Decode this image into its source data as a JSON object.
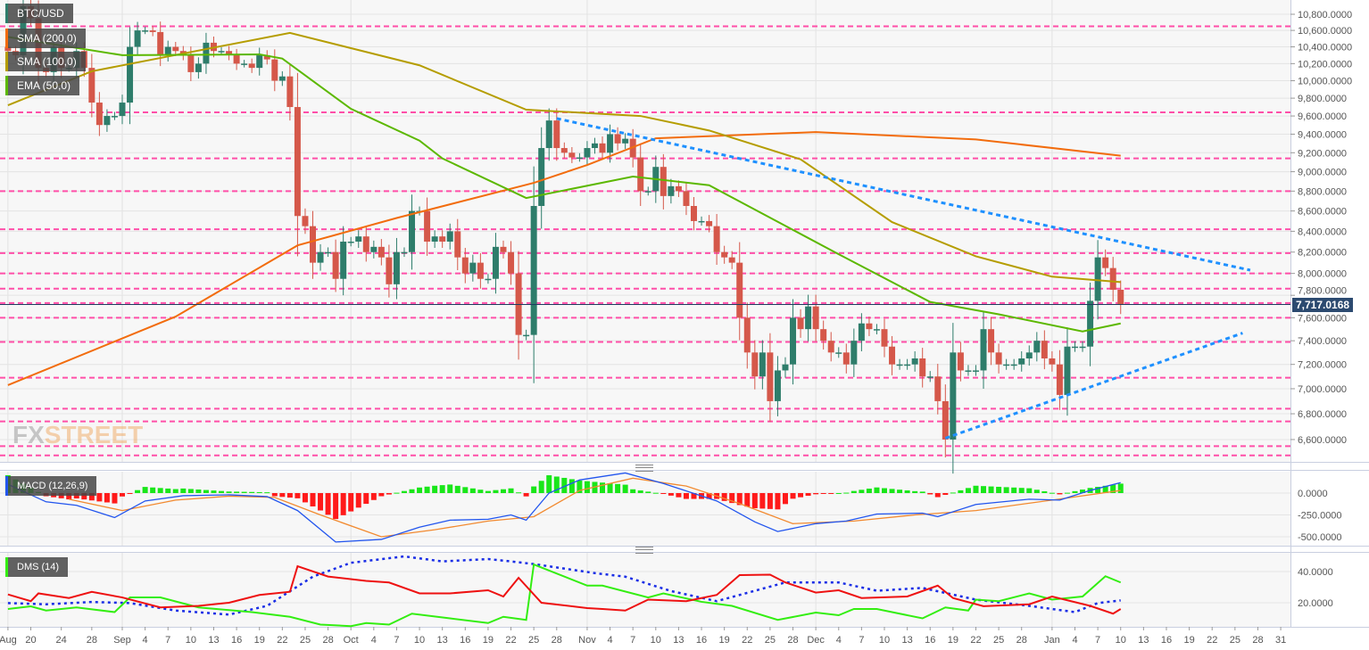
{
  "symbol": "BTC/USD",
  "indicators": [
    {
      "label": "SMA (200,0)",
      "color": "#f26c0d"
    },
    {
      "label": "SMA (100,0)",
      "color": "#b59d00"
    },
    {
      "label": "EMA (50,0)",
      "color": "#5cb800"
    }
  ],
  "symbol_color": "#2e7d6b",
  "current_price": "7,717.0168",
  "logo": {
    "part1": "FX",
    "part2": "STREET"
  },
  "colors": {
    "up": "#2e7d6b",
    "down": "#d5584a",
    "levels": "#ff4fa8",
    "trendline": "#1e90ff",
    "price_line": "#1f3a5f",
    "macd": "#2255ee",
    "signal": "#f28a30",
    "hist_up": "#19e619",
    "hist_down": "#ff1a1a",
    "di_plus": "#33ee11",
    "di_minus": "#ee1111",
    "adx": "#1a2ee6"
  },
  "chart_data": [
    {
      "type": "candlestick",
      "panel": "price",
      "scale": "log",
      "ylim": [
        6450,
        10950
      ],
      "y_ticks": [
        "10,800.0000",
        "10,600.0000",
        "10,400.0000",
        "10,200.0000",
        "10,000.0000",
        "9,800.0000",
        "9,600.0000",
        "9,400.0000",
        "9,200.0000",
        "9,000.0000",
        "8,800.0000",
        "8,600.0000",
        "8,400.0000",
        "8,200.0000",
        "8,000.0000",
        "7,800.0000",
        "7,600.0000",
        "7,400.0000",
        "7,200.0000",
        "7,000.0000",
        "6,800.0000",
        "6,600.0000"
      ],
      "candles": {
        "start": "Aug 17",
        "end": "Jan 10",
        "close": [
          10350,
          10300,
          10900,
          10750,
          10150,
          10100,
          10400,
          10150,
          10150,
          10350,
          10150,
          9750,
          9500,
          9600,
          9600,
          9750,
          10400,
          10600,
          10600,
          10580,
          10300,
          10400,
          10350,
          10300,
          10100,
          10200,
          10450,
          10350,
          10350,
          10300,
          10200,
          10200,
          10150,
          10300,
          10250,
          10000,
          10050,
          9700,
          8550,
          8450,
          8100,
          8200,
          8200,
          7950,
          8300,
          8300,
          8350,
          8200,
          8250,
          8150,
          7900,
          8200,
          8200,
          8600,
          8600,
          8300,
          8350,
          8300,
          8400,
          8150,
          8000,
          8100,
          7950,
          7950,
          8250,
          8200,
          8000,
          7450,
          7450,
          8650,
          9250,
          9550,
          9250,
          9200,
          9150,
          9150,
          9250,
          9300,
          9200,
          9400,
          9300,
          9350,
          9150,
          8800,
          8800,
          9050,
          8750,
          8850,
          8800,
          8650,
          8500,
          8500,
          8450,
          8200,
          8150,
          8100,
          7600,
          7300,
          7100,
          7300,
          6900,
          7150,
          7200,
          7600,
          7500,
          7700,
          7500,
          7400,
          7300,
          7300,
          7200,
          7400,
          7550,
          7500,
          7500,
          7350,
          7200,
          7200,
          7200,
          7250,
          7100,
          7100,
          6900,
          6600,
          7300,
          7150,
          7150,
          7150,
          7500,
          7300,
          7200,
          7200,
          7200,
          7250,
          7300,
          7400,
          7250,
          7200,
          6950,
          7350,
          7350,
          7350,
          7750,
          8150,
          8050,
          7850,
          7717
        ]
      },
      "moving_averages": [
        {
          "name": "SMA (200,0)",
          "points": [
            [
              "Aug 17",
              7029
            ],
            [
              "Sep 8",
              7610
            ],
            [
              "Sep 24",
              8264
            ],
            [
              "Oct 7",
              8530
            ],
            [
              "Oct 25",
              8885
            ],
            [
              "Nov 1",
              9070
            ],
            [
              "Nov 10",
              9355
            ],
            [
              "Dec 1",
              9423
            ],
            [
              "Dec 22",
              9343
            ],
            [
              "Jan 10",
              9168
            ]
          ]
        },
        {
          "name": "SMA (100,0)",
          "points": [
            [
              "Aug 17",
              9720
            ],
            [
              "Aug 28",
              10110
            ],
            [
              "Sep 23",
              10570
            ],
            [
              "Oct 10",
              10180
            ],
            [
              "Oct 24",
              9670
            ],
            [
              "Nov 8",
              9600
            ],
            [
              "Nov 17",
              9440
            ],
            [
              "Nov 29",
              9130
            ],
            [
              "Dec 11",
              8490
            ],
            [
              "Dec 22",
              8160
            ],
            [
              "Jan 1",
              7970
            ],
            [
              "Jan 10",
              7920
            ]
          ]
        },
        {
          "name": "EMA (50,0)",
          "points": [
            [
              "Aug 17",
              10520
            ],
            [
              "Sep 1",
              10300
            ],
            [
              "Sep 19",
              10310
            ],
            [
              "Sep 22",
              10260
            ],
            [
              "Oct 1",
              9680
            ],
            [
              "Oct 10",
              9330
            ],
            [
              "Oct 13",
              9140
            ],
            [
              "Oct 24",
              8730
            ],
            [
              "Nov 7",
              8950
            ],
            [
              "Nov 17",
              8860
            ],
            [
              "Dec 4",
              8180
            ],
            [
              "Dec 16",
              7740
            ],
            [
              "Dec 25",
              7630
            ],
            [
              "Jan 5",
              7480
            ],
            [
              "Jan 10",
              7550
            ]
          ]
        }
      ],
      "horizontal_levels": [
        10650,
        9640,
        9140,
        8800,
        8420,
        8190,
        8000,
        7860,
        7730,
        7600,
        7390,
        7090,
        6840,
        6740,
        6550,
        6480
      ],
      "trendlines": [
        {
          "from": [
            "Oct 28",
            9572
          ],
          "to": [
            "Jan 27",
            8030
          ]
        },
        {
          "from": [
            "Dec 18",
            6610
          ],
          "to": [
            "Jan 26",
            7466
          ]
        }
      ],
      "current_price": 7717.0168
    },
    {
      "type": "line",
      "panel": "macd",
      "title": "MACD (12,26,9)",
      "y_ticks": [
        "0.0000",
        "-250.0000",
        "-500.0000"
      ],
      "ylim": [
        -620,
        280
      ],
      "macd": [
        [
          "Aug 17",
          100
        ],
        [
          "Aug 22",
          -100
        ],
        [
          "Aug 26",
          -140
        ],
        [
          "Aug 31",
          -280
        ],
        [
          "Sep 4",
          -90
        ],
        [
          "Sep 9",
          -30
        ],
        [
          "Sep 15",
          -20
        ],
        [
          "Sep 20",
          -40
        ],
        [
          "Sep 24",
          -200
        ],
        [
          "Sep 29",
          -560
        ],
        [
          "Oct 5",
          -530
        ],
        [
          "Oct 10",
          -390
        ],
        [
          "Oct 14",
          -310
        ],
        [
          "Oct 19",
          -300
        ],
        [
          "Oct 22",
          -250
        ],
        [
          "Oct 24",
          -310
        ],
        [
          "Oct 27",
          0
        ],
        [
          "Oct 31",
          150
        ],
        [
          "Nov 6",
          230
        ],
        [
          "Nov 11",
          110
        ],
        [
          "Nov 18",
          -90
        ],
        [
          "Nov 23",
          -330
        ],
        [
          "Nov 26",
          -440
        ],
        [
          "Dec 1",
          -350
        ],
        [
          "Dec 5",
          -320
        ],
        [
          "Dec 9",
          -240
        ],
        [
          "Dec 15",
          -230
        ],
        [
          "Dec 17",
          -270
        ],
        [
          "Dec 22",
          -130
        ],
        [
          "Dec 29",
          -70
        ],
        [
          "Jan 2",
          -80
        ],
        [
          "Jan 6",
          30
        ],
        [
          "Jan 10",
          120
        ]
      ],
      "signal": [
        [
          "Aug 25",
          -70
        ],
        [
          "Sep 1",
          -200
        ],
        [
          "Sep 8",
          -80
        ],
        [
          "Sep 15",
          -35
        ],
        [
          "Sep 21",
          -50
        ],
        [
          "Sep 27",
          -250
        ],
        [
          "Oct 5",
          -500
        ],
        [
          "Oct 12",
          -420
        ],
        [
          "Oct 19",
          -320
        ],
        [
          "Oct 25",
          -270
        ],
        [
          "Oct 31",
          30
        ],
        [
          "Nov 7",
          170
        ],
        [
          "Nov 14",
          80
        ],
        [
          "Nov 21",
          -120
        ],
        [
          "Nov 28",
          -350
        ],
        [
          "Dec 6",
          -320
        ],
        [
          "Dec 14",
          -250
        ],
        [
          "Dec 22",
          -200
        ],
        [
          "Jan 1",
          -80
        ],
        [
          "Jan 10",
          30
        ]
      ]
    },
    {
      "type": "line",
      "panel": "dms",
      "title": "DMS (14)",
      "y_ticks": [
        "40.0000",
        "20.0000"
      ],
      "ylim": [
        3,
        52
      ],
      "di_plus": [
        [
          "Aug 17",
          16
        ],
        [
          "Aug 20",
          17.7
        ],
        [
          "Aug 22",
          15
        ],
        [
          "Aug 26",
          17
        ],
        [
          "Aug 31",
          14
        ],
        [
          "Sep 2",
          23.4
        ],
        [
          "Sep 6",
          23.4
        ],
        [
          "Sep 11",
          17
        ],
        [
          "Sep 18",
          14
        ],
        [
          "Sep 23",
          11
        ],
        [
          "Sep 27",
          6
        ],
        [
          "Oct 1",
          5
        ],
        [
          "Oct 3",
          7
        ],
        [
          "Oct 6",
          6
        ],
        [
          "Oct 9",
          13
        ],
        [
          "Oct 14",
          10
        ],
        [
          "Oct 19",
          7
        ],
        [
          "Oct 21",
          11
        ],
        [
          "Oct 24",
          9
        ],
        [
          "Oct 25",
          44.5
        ],
        [
          "Nov 1",
          31
        ],
        [
          "Nov 3",
          31
        ],
        [
          "Nov 9",
          23.4
        ],
        [
          "Nov 11",
          26
        ],
        [
          "Nov 16",
          20.6
        ],
        [
          "Nov 20",
          18
        ],
        [
          "Nov 26",
          9
        ],
        [
          "Dec 1",
          13.7
        ],
        [
          "Dec 4",
          12
        ],
        [
          "Dec 6",
          16
        ],
        [
          "Dec 9",
          16
        ],
        [
          "Dec 15",
          10
        ],
        [
          "Dec 18",
          17
        ],
        [
          "Dec 21",
          15
        ],
        [
          "Dec 22",
          22
        ],
        [
          "Dec 25",
          21
        ],
        [
          "Dec 29",
          26
        ],
        [
          "Jan 1",
          22
        ],
        [
          "Jan 5",
          24
        ],
        [
          "Jan 8",
          37
        ],
        [
          "Jan 10",
          33
        ]
      ],
      "di_minus": [
        [
          "Aug 17",
          25.3
        ],
        [
          "Aug 20",
          21
        ],
        [
          "Aug 21",
          26
        ],
        [
          "Aug 25",
          23
        ],
        [
          "Aug 28",
          27
        ],
        [
          "Sep 1",
          23.4
        ],
        [
          "Sep 6",
          17
        ],
        [
          "Sep 11",
          18
        ],
        [
          "Sep 15",
          20
        ],
        [
          "Sep 19",
          25
        ],
        [
          "Sep 23",
          27
        ],
        [
          "Sep 24",
          43.4
        ],
        [
          "Sep 28",
          36.8
        ],
        [
          "Oct 3",
          34
        ],
        [
          "Oct 6",
          33
        ],
        [
          "Oct 10",
          26
        ],
        [
          "Oct 14",
          26
        ],
        [
          "Oct 19",
          28
        ],
        [
          "Oct 21",
          24
        ],
        [
          "Oct 23",
          36
        ],
        [
          "Oct 26",
          20
        ],
        [
          "Nov 1",
          16.6
        ],
        [
          "Nov 3",
          16
        ],
        [
          "Nov 6",
          15
        ],
        [
          "Nov 9",
          22
        ],
        [
          "Nov 14",
          21
        ],
        [
          "Nov 16",
          23
        ],
        [
          "Nov 18",
          25
        ],
        [
          "Nov 21",
          37.7
        ],
        [
          "Nov 25",
          38
        ],
        [
          "Nov 27",
          33
        ],
        [
          "Dec 1",
          26.5
        ],
        [
          "Dec 4",
          28
        ],
        [
          "Dec 7",
          23
        ],
        [
          "Dec 13",
          24
        ],
        [
          "Dec 17",
          31
        ],
        [
          "Dec 19",
          23
        ],
        [
          "Dec 23",
          17.8
        ],
        [
          "Dec 29",
          19
        ],
        [
          "Jan 1",
          24
        ],
        [
          "Jan 6",
          18
        ],
        [
          "Jan 9",
          13
        ],
        [
          "Jan 10",
          16
        ]
      ],
      "adx": [
        [
          "Aug 17",
          19.8
        ],
        [
          "Aug 22",
          19
        ],
        [
          "Aug 28",
          20.5
        ],
        [
          "Sep 2",
          19.8
        ],
        [
          "Sep 8",
          15
        ],
        [
          "Sep 15",
          12.4
        ],
        [
          "Sep 20",
          18
        ],
        [
          "Sep 26",
          36.7
        ],
        [
          "Oct 1",
          45.6
        ],
        [
          "Oct 8",
          49.7
        ],
        [
          "Oct 13",
          46.5
        ],
        [
          "Oct 19",
          48
        ],
        [
          "Oct 22",
          46.5
        ],
        [
          "Oct 25",
          44.8
        ],
        [
          "Nov 2",
          39
        ],
        [
          "Nov 6",
          36.7
        ],
        [
          "Nov 12",
          27.5
        ],
        [
          "Nov 18",
          21
        ],
        [
          "Nov 24",
          29
        ],
        [
          "Nov 27",
          33
        ],
        [
          "Dec 4",
          33
        ],
        [
          "Dec 9",
          27.7
        ],
        [
          "Dec 15",
          29.5
        ],
        [
          "Dec 22",
          22
        ],
        [
          "Dec 29",
          18
        ],
        [
          "Jan 4",
          14
        ],
        [
          "Jan 7",
          19.8
        ],
        [
          "Jan 10",
          21.5
        ]
      ]
    }
  ],
  "x_ticks": [
    [
      "Aug 17",
      "Aug"
    ],
    [
      "Aug 20",
      "20"
    ],
    [
      "Aug 24",
      "24"
    ],
    [
      "Aug 28",
      "28"
    ],
    [
      "Sep 1",
      "Sep"
    ],
    [
      "Sep 4",
      "4"
    ],
    [
      "Sep 7",
      "7"
    ],
    [
      "Sep 10",
      "10"
    ],
    [
      "Sep 13",
      "13"
    ],
    [
      "Sep 16",
      "16"
    ],
    [
      "Sep 19",
      "19"
    ],
    [
      "Sep 22",
      "22"
    ],
    [
      "Sep 25",
      "25"
    ],
    [
      "Sep 28",
      "28"
    ],
    [
      "Oct 1",
      "Oct"
    ],
    [
      "Oct 4",
      "4"
    ],
    [
      "Oct 7",
      "7"
    ],
    [
      "Oct 10",
      "10"
    ],
    [
      "Oct 13",
      "13"
    ],
    [
      "Oct 16",
      "16"
    ],
    [
      "Oct 19",
      "19"
    ],
    [
      "Oct 22",
      "22"
    ],
    [
      "Oct 25",
      "25"
    ],
    [
      "Oct 28",
      "28"
    ],
    [
      "Nov 1",
      "Nov"
    ],
    [
      "Nov 4",
      "4"
    ],
    [
      "Nov 7",
      "7"
    ],
    [
      "Nov 10",
      "10"
    ],
    [
      "Nov 13",
      "13"
    ],
    [
      "Nov 16",
      "16"
    ],
    [
      "Nov 19",
      "19"
    ],
    [
      "Nov 22",
      "22"
    ],
    [
      "Nov 25",
      "25"
    ],
    [
      "Nov 28",
      "28"
    ],
    [
      "Dec 1",
      "Dec"
    ],
    [
      "Dec 4",
      "4"
    ],
    [
      "Dec 7",
      "7"
    ],
    [
      "Dec 10",
      "10"
    ],
    [
      "Dec 13",
      "13"
    ],
    [
      "Dec 16",
      "16"
    ],
    [
      "Dec 19",
      "19"
    ],
    [
      "Dec 22",
      "22"
    ],
    [
      "Dec 25",
      "25"
    ],
    [
      "Dec 28",
      "28"
    ],
    [
      "Jan 1",
      "Jan"
    ],
    [
      "Jan 4",
      "4"
    ],
    [
      "Jan 7",
      "7"
    ],
    [
      "Jan 10",
      "10"
    ],
    [
      "Jan 13",
      "13"
    ],
    [
      "Jan 16",
      "16"
    ],
    [
      "Jan 19",
      "19"
    ],
    [
      "Jan 22",
      "22"
    ],
    [
      "Jan 25",
      "25"
    ],
    [
      "Jan 28",
      "28"
    ],
    [
      "Jan 31",
      "31"
    ]
  ]
}
